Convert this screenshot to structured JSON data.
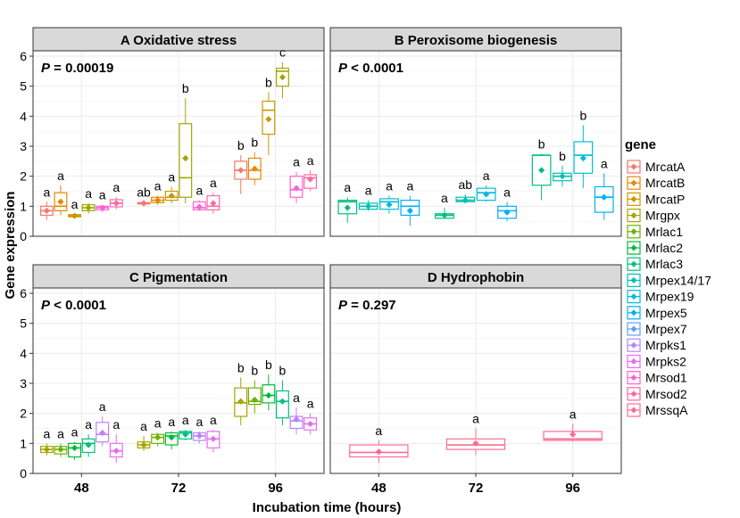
{
  "chart_data": {
    "type": "boxplot",
    "title": "",
    "xlabel": "Incubation time (hours)",
    "ylabel": "Gene expression",
    "x_categories": [
      "48",
      "72",
      "96"
    ],
    "ylim": [
      0,
      6
    ],
    "yticks": [
      0,
      1,
      2,
      3,
      4,
      5,
      6
    ],
    "grid": true,
    "legend": {
      "title": "gene",
      "position": "right",
      "entries": [
        {
          "name": "MrcatA",
          "color": "#F8766D"
        },
        {
          "name": "MrcatB",
          "color": "#E58700"
        },
        {
          "name": "MrcatP",
          "color": "#C99800"
        },
        {
          "name": "Mrgpx",
          "color": "#A3A500"
        },
        {
          "name": "Mrlac1",
          "color": "#6BB100"
        },
        {
          "name": "Mrlac2",
          "color": "#00BA38"
        },
        {
          "name": "Mrlac3",
          "color": "#00BF7D"
        },
        {
          "name": "Mrpex14/17",
          "color": "#00C0AF"
        },
        {
          "name": "Mrpex19",
          "color": "#00BCD8"
        },
        {
          "name": "Mrpex5",
          "color": "#00B0F6"
        },
        {
          "name": "Mrpex7",
          "color": "#619CFF"
        },
        {
          "name": "Mrpks1",
          "color": "#B983FF"
        },
        {
          "name": "Mrpks2",
          "color": "#E76BF3"
        },
        {
          "name": "Mrsod1",
          "color": "#FD61D1"
        },
        {
          "name": "Mrsod2",
          "color": "#FF67A4"
        },
        {
          "name": "MrssqA",
          "color": "#FF6C91"
        }
      ]
    },
    "panels": [
      {
        "id": "A",
        "title": "A  Oxidative stress",
        "p_label": "P",
        "p_text": " = 0.00019",
        "genes": [
          {
            "gene": "MrcatA",
            "color": "#F8766D"
          },
          {
            "gene": "MrcatB",
            "color": "#E58700"
          },
          {
            "gene": "MrcatP",
            "color": "#C99800"
          },
          {
            "gene": "Mrgpx",
            "color": "#A3A500"
          },
          {
            "gene": "Mrsod1",
            "color": "#FD61D1"
          },
          {
            "gene": "Mrsod2",
            "color": "#FF67A4"
          }
        ],
        "boxes": [
          {
            "time": "48",
            "gene": "MrcatA",
            "min": 0.55,
            "q1": 0.7,
            "median": 0.85,
            "q3": 1.0,
            "max": 1.15,
            "mean": 0.85,
            "letter": "a"
          },
          {
            "time": "48",
            "gene": "MrcatB",
            "min": 0.7,
            "q1": 0.85,
            "median": 1.0,
            "q3": 1.45,
            "max": 1.7,
            "mean": 1.15,
            "letter": "a"
          },
          {
            "time": "48",
            "gene": "MrcatP",
            "min": 0.6,
            "q1": 0.65,
            "median": 0.68,
            "q3": 0.72,
            "max": 0.75,
            "mean": 0.68,
            "letter": "a"
          },
          {
            "time": "48",
            "gene": "Mrgpx",
            "min": 0.75,
            "q1": 0.85,
            "median": 0.95,
            "q3": 1.05,
            "max": 1.1,
            "mean": 0.95,
            "letter": "a"
          },
          {
            "time": "48",
            "gene": "Mrsod1",
            "min": 0.8,
            "q1": 0.88,
            "median": 0.95,
            "q3": 1.0,
            "max": 1.05,
            "mean": 0.95,
            "letter": "a"
          },
          {
            "time": "48",
            "gene": "Mrsod2",
            "min": 0.9,
            "q1": 0.98,
            "median": 1.1,
            "q3": 1.22,
            "max": 1.3,
            "mean": 1.1,
            "letter": "a"
          },
          {
            "time": "72",
            "gene": "MrcatA",
            "min": 1.05,
            "q1": 1.08,
            "median": 1.1,
            "q3": 1.12,
            "max": 1.15,
            "mean": 1.1,
            "letter": "ab"
          },
          {
            "time": "72",
            "gene": "MrcatB",
            "min": 1.05,
            "q1": 1.12,
            "median": 1.2,
            "q3": 1.3,
            "max": 1.35,
            "mean": 1.2,
            "letter": "a"
          },
          {
            "time": "72",
            "gene": "MrcatP",
            "min": 1.1,
            "q1": 1.2,
            "median": 1.3,
            "q3": 1.5,
            "max": 1.65,
            "mean": 1.35,
            "letter": "a"
          },
          {
            "time": "72",
            "gene": "Mrgpx",
            "min": 1.1,
            "q1": 1.3,
            "median": 1.95,
            "q3": 3.75,
            "max": 4.6,
            "mean": 2.6,
            "letter": "b"
          },
          {
            "time": "72",
            "gene": "Mrsod1",
            "min": 0.85,
            "q1": 0.88,
            "median": 0.95,
            "q3": 1.15,
            "max": 1.2,
            "mean": 0.98,
            "letter": "a"
          },
          {
            "time": "72",
            "gene": "Mrsod2",
            "min": 0.75,
            "q1": 0.88,
            "median": 1.0,
            "q3": 1.35,
            "max": 1.45,
            "mean": 1.1,
            "letter": "a"
          },
          {
            "time": "96",
            "gene": "MrcatA",
            "min": 1.4,
            "q1": 1.9,
            "median": 2.2,
            "q3": 2.5,
            "max": 2.7,
            "mean": 2.2,
            "letter": "b"
          },
          {
            "time": "96",
            "gene": "MrcatB",
            "min": 1.7,
            "q1": 1.9,
            "median": 2.2,
            "q3": 2.6,
            "max": 2.8,
            "mean": 2.25,
            "letter": "b"
          },
          {
            "time": "96",
            "gene": "MrcatP",
            "min": 2.7,
            "q1": 3.4,
            "median": 4.2,
            "q3": 4.5,
            "max": 4.8,
            "mean": 3.9,
            "letter": "b"
          },
          {
            "time": "96",
            "gene": "Mrgpx",
            "min": 4.6,
            "q1": 5.0,
            "median": 5.5,
            "q3": 5.6,
            "max": 5.8,
            "mean": 5.3,
            "letter": "c"
          },
          {
            "time": "96",
            "gene": "Mrsod1",
            "min": 1.1,
            "q1": 1.3,
            "median": 1.55,
            "q3": 2.0,
            "max": 2.15,
            "mean": 1.6,
            "letter": "a"
          },
          {
            "time": "96",
            "gene": "Mrsod2",
            "min": 1.5,
            "q1": 1.6,
            "median": 1.95,
            "q3": 2.05,
            "max": 2.2,
            "mean": 1.9,
            "letter": "a"
          }
        ]
      },
      {
        "id": "B",
        "title": "B  Peroxisome biogenesis",
        "p_label": "P",
        "p_text": " < 0.0001",
        "genes": [
          {
            "gene": "Mrlac3",
            "color": "#00BF7D"
          },
          {
            "gene": "Mrpex14/17",
            "color": "#00C0AF"
          },
          {
            "gene": "Mrpex19",
            "color": "#00BCD8"
          },
          {
            "gene": "Mrpex5",
            "color": "#00B0F6"
          }
        ],
        "boxes": [
          {
            "time": "48",
            "gene": "Mrlac3",
            "min": 0.45,
            "q1": 0.75,
            "median": 1.15,
            "q3": 1.2,
            "max": 1.3,
            "mean": 0.95,
            "letter": "a"
          },
          {
            "time": "48",
            "gene": "Mrpex14/17",
            "min": 0.85,
            "q1": 0.9,
            "median": 1.0,
            "q3": 1.1,
            "max": 1.2,
            "mean": 1.0,
            "letter": "a"
          },
          {
            "time": "48",
            "gene": "Mrpex19",
            "min": 0.75,
            "q1": 0.9,
            "median": 1.15,
            "q3": 1.25,
            "max": 1.35,
            "mean": 1.05,
            "letter": "a"
          },
          {
            "time": "48",
            "gene": "Mrpex5",
            "min": 0.35,
            "q1": 0.7,
            "median": 1.0,
            "q3": 1.2,
            "max": 1.35,
            "mean": 0.85,
            "letter": "a"
          },
          {
            "time": "72",
            "gene": "Mrlac3",
            "min": 0.6,
            "q1": 0.6,
            "median": 0.7,
            "q3": 0.75,
            "max": 0.95,
            "mean": 0.7,
            "letter": "a"
          },
          {
            "time": "72",
            "gene": "Mrpex14/17",
            "min": 1.1,
            "q1": 1.15,
            "median": 1.2,
            "q3": 1.3,
            "max": 1.4,
            "mean": 1.2,
            "letter": "ab"
          },
          {
            "time": "72",
            "gene": "Mrpex19",
            "min": 1.15,
            "q1": 1.2,
            "median": 1.45,
            "q3": 1.6,
            "max": 1.7,
            "mean": 1.4,
            "letter": "a"
          },
          {
            "time": "72",
            "gene": "Mrpex5",
            "min": 0.5,
            "q1": 0.6,
            "median": 0.85,
            "q3": 1.0,
            "max": 1.15,
            "mean": 0.8,
            "letter": "a"
          },
          {
            "time": "96",
            "gene": "Mrlac3",
            "min": 1.2,
            "q1": 1.7,
            "median": 2.7,
            "q3": 2.7,
            "max": 2.75,
            "mean": 2.2,
            "letter": "b"
          },
          {
            "time": "96",
            "gene": "Mrpex14/17",
            "min": 1.65,
            "q1": 1.85,
            "median": 2.0,
            "q3": 2.1,
            "max": 2.35,
            "mean": 2.0,
            "letter": "b"
          },
          {
            "time": "96",
            "gene": "Mrpex19",
            "min": 1.6,
            "q1": 2.1,
            "median": 2.7,
            "q3": 3.15,
            "max": 3.7,
            "mean": 2.6,
            "letter": "b"
          },
          {
            "time": "96",
            "gene": "Mrpex5",
            "min": 0.55,
            "q1": 0.8,
            "median": 1.3,
            "q3": 1.65,
            "max": 2.1,
            "mean": 1.3,
            "letter": "a"
          }
        ]
      },
      {
        "id": "C",
        "title": "C  Pigmentation",
        "p_label": "P",
        "p_text": " < 0.0001",
        "genes": [
          {
            "gene": "Mrgpx",
            "color": "#A3A500"
          },
          {
            "gene": "Mrlac1",
            "color": "#6BB100"
          },
          {
            "gene": "Mrlac2",
            "color": "#00BA38"
          },
          {
            "gene": "Mrlac3",
            "color": "#00BF7D"
          },
          {
            "gene": "Mrpks1",
            "color": "#B983FF"
          },
          {
            "gene": "Mrpks2",
            "color": "#E76BF3"
          }
        ],
        "boxes": [
          {
            "time": "48",
            "gene": "Mrgpx",
            "min": 0.6,
            "q1": 0.7,
            "median": 0.8,
            "q3": 0.9,
            "max": 1.0,
            "mean": 0.8,
            "letter": "a"
          },
          {
            "time": "48",
            "gene": "Mrlac1",
            "min": 0.55,
            "q1": 0.65,
            "median": 0.8,
            "q3": 0.9,
            "max": 1.0,
            "mean": 0.8,
            "letter": "a"
          },
          {
            "time": "48",
            "gene": "Mrlac2",
            "min": 0.45,
            "q1": 0.55,
            "median": 0.85,
            "q3": 1.0,
            "max": 1.05,
            "mean": 0.85,
            "letter": "a"
          },
          {
            "time": "48",
            "gene": "Mrlac3",
            "min": 0.55,
            "q1": 0.7,
            "median": 1.0,
            "q3": 1.15,
            "max": 1.3,
            "mean": 0.95,
            "letter": "a"
          },
          {
            "time": "48",
            "gene": "Mrpks1",
            "min": 0.9,
            "q1": 1.05,
            "median": 1.3,
            "q3": 1.7,
            "max": 1.9,
            "mean": 1.35,
            "letter": "a"
          },
          {
            "time": "48",
            "gene": "Mrpks2",
            "min": 0.35,
            "q1": 0.55,
            "median": 0.75,
            "q3": 1.0,
            "max": 1.3,
            "mean": 0.75,
            "letter": "a"
          },
          {
            "time": "72",
            "gene": "Mrgpx",
            "min": 0.75,
            "q1": 0.85,
            "median": 0.95,
            "q3": 1.05,
            "max": 1.25,
            "mean": 0.95,
            "letter": "a"
          },
          {
            "time": "72",
            "gene": "Mrlac1",
            "min": 0.9,
            "q1": 1.0,
            "median": 1.2,
            "q3": 1.3,
            "max": 1.35,
            "mean": 1.2,
            "letter": "a"
          },
          {
            "time": "72",
            "gene": "Mrlac2",
            "min": 0.8,
            "q1": 0.95,
            "median": 1.25,
            "q3": 1.35,
            "max": 1.4,
            "mean": 1.2,
            "letter": "a"
          },
          {
            "time": "72",
            "gene": "Mrlac3",
            "min": 1.1,
            "q1": 1.15,
            "median": 1.35,
            "q3": 1.4,
            "max": 1.45,
            "mean": 1.3,
            "letter": "a"
          },
          {
            "time": "72",
            "gene": "Mrpks1",
            "min": 1.0,
            "q1": 1.1,
            "median": 1.25,
            "q3": 1.35,
            "max": 1.4,
            "mean": 1.25,
            "letter": "a"
          },
          {
            "time": "72",
            "gene": "Mrpks2",
            "min": 0.7,
            "q1": 0.85,
            "median": 1.15,
            "q3": 1.4,
            "max": 1.45,
            "mean": 1.15,
            "letter": "a"
          },
          {
            "time": "96",
            "gene": "Mrgpx",
            "min": 1.6,
            "q1": 1.9,
            "median": 2.35,
            "q3": 2.85,
            "max": 3.2,
            "mean": 2.4,
            "letter": "b"
          },
          {
            "time": "96",
            "gene": "Mrlac1",
            "min": 2.0,
            "q1": 2.3,
            "median": 2.4,
            "q3": 2.85,
            "max": 3.1,
            "mean": 2.45,
            "letter": "b"
          },
          {
            "time": "96",
            "gene": "Mrlac2",
            "min": 2.1,
            "q1": 2.35,
            "median": 2.6,
            "q3": 2.95,
            "max": 3.3,
            "mean": 2.6,
            "letter": "b"
          },
          {
            "time": "96",
            "gene": "Mrlac3",
            "min": 1.6,
            "q1": 1.85,
            "median": 2.4,
            "q3": 2.75,
            "max": 3.1,
            "mean": 2.4,
            "letter": "b"
          },
          {
            "time": "96",
            "gene": "Mrpks1",
            "min": 1.3,
            "q1": 1.5,
            "median": 1.75,
            "q3": 1.9,
            "max": 2.2,
            "mean": 1.8,
            "letter": "a"
          },
          {
            "time": "96",
            "gene": "Mrpks2",
            "min": 1.3,
            "q1": 1.45,
            "median": 1.65,
            "q3": 1.85,
            "max": 2.0,
            "mean": 1.65,
            "letter": "a"
          }
        ]
      },
      {
        "id": "D",
        "title": "D  Hydrophobin",
        "p_label": "P",
        "p_text": " = 0.297",
        "genes": [
          {
            "gene": "MrssqA",
            "color": "#FF6C91"
          }
        ],
        "boxes": [
          {
            "time": "48",
            "gene": "MrssqA",
            "min": 0.35,
            "q1": 0.55,
            "median": 0.7,
            "q3": 0.95,
            "max": 1.1,
            "mean": 0.72,
            "letter": "a"
          },
          {
            "time": "72",
            "gene": "MrssqA",
            "min": 0.6,
            "q1": 0.8,
            "median": 0.95,
            "q3": 1.15,
            "max": 1.5,
            "mean": 1.0,
            "letter": "a"
          },
          {
            "time": "96",
            "gene": "MrssqA",
            "min": 1.05,
            "q1": 1.1,
            "median": 1.15,
            "q3": 1.4,
            "max": 1.65,
            "mean": 1.3,
            "letter": "a"
          }
        ]
      }
    ]
  }
}
